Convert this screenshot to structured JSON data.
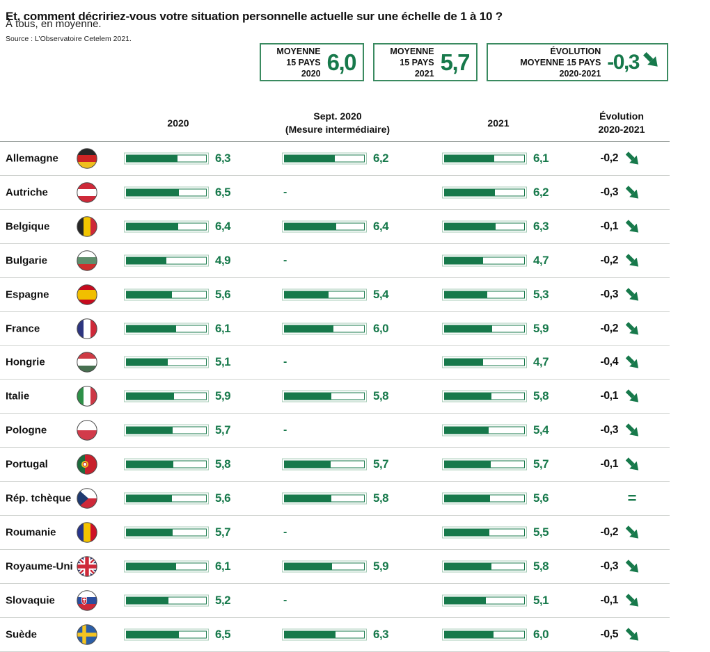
{
  "page": {
    "title": "Et, comment décririez-vous votre situation personnelle actuelle sur une échelle de 1 à 10 ?",
    "subtitle": "À tous, en moyenne.",
    "source": "Source : L’Observatoire Cetelem 2021."
  },
  "colors": {
    "brand_green": "#17794B",
    "bar_light_border": "#A9CDB9",
    "box_border": "#3A8A60",
    "separator": "#cfd2cf"
  },
  "summary_boxes": [
    {
      "label_lines": [
        "MOYENNE",
        "15 PAYS",
        "2020"
      ],
      "value": "6,0"
    },
    {
      "label_lines": [
        "MOYENNE",
        "15 PAYS",
        "2021"
      ],
      "value": "5,7"
    },
    {
      "label_lines": [
        "ÉVOLUTION",
        "MOYENNE 15 PAYS",
        "2020-2021"
      ],
      "value": "-0,3",
      "trend": "down"
    }
  ],
  "columns": {
    "c2020": "2020",
    "csept_line1": "Sept. 2020",
    "csept_line2": "(Mesure intermédiaire)",
    "c2021": "2021",
    "cevo_line1": "Évolution",
    "cevo_line2": "2020-2021"
  },
  "rows": [
    {
      "country": "Allemagne",
      "flag": "germany",
      "v2020": "6,3",
      "sept": "6,2",
      "v2021": "6,1",
      "evolution": "-0,2",
      "trend": "down"
    },
    {
      "country": "Autriche",
      "flag": "austria",
      "v2020": "6,5",
      "sept": "-",
      "v2021": "6,2",
      "evolution": "-0,3",
      "trend": "down"
    },
    {
      "country": "Belgique",
      "flag": "belgium",
      "v2020": "6,4",
      "sept": "6,4",
      "v2021": "6,3",
      "evolution": "-0,1",
      "trend": "down"
    },
    {
      "country": "Bulgarie",
      "flag": "bulgaria",
      "v2020": "4,9",
      "sept": "-",
      "v2021": "4,7",
      "evolution": "-0,2",
      "trend": "down"
    },
    {
      "country": "Espagne",
      "flag": "spain",
      "v2020": "5,6",
      "sept": "5,4",
      "v2021": "5,3",
      "evolution": "-0,3",
      "trend": "down"
    },
    {
      "country": "France",
      "flag": "france",
      "v2020": "6,1",
      "sept": "6,0",
      "v2021": "5,9",
      "evolution": "-0,2",
      "trend": "down"
    },
    {
      "country": "Hongrie",
      "flag": "hungary",
      "v2020": "5,1",
      "sept": "-",
      "v2021": "4,7",
      "evolution": "-0,4",
      "trend": "down"
    },
    {
      "country": "Italie",
      "flag": "italy",
      "v2020": "5,9",
      "sept": "5,8",
      "v2021": "5,8",
      "evolution": "-0,1",
      "trend": "down"
    },
    {
      "country": "Pologne",
      "flag": "poland",
      "v2020": "5,7",
      "sept": "-",
      "v2021": "5,4",
      "evolution": "-0,3",
      "trend": "down"
    },
    {
      "country": "Portugal",
      "flag": "portugal",
      "v2020": "5,8",
      "sept": "5,7",
      "v2021": "5,7",
      "evolution": "-0,1",
      "trend": "down"
    },
    {
      "country": "Rép. tchèque",
      "flag": "czech-republic",
      "v2020": "5,6",
      "sept": "5,8",
      "v2021": "5,6",
      "evolution": "=",
      "trend": "equal"
    },
    {
      "country": "Roumanie",
      "flag": "romania",
      "v2020": "5,7",
      "sept": "-",
      "v2021": "5,5",
      "evolution": "-0,2",
      "trend": "down"
    },
    {
      "country": "Royaume-Uni",
      "flag": "united-kingdom",
      "v2020": "6,1",
      "sept": "5,9",
      "v2021": "5,8",
      "evolution": "-0,3",
      "trend": "down"
    },
    {
      "country": "Slovaquie",
      "flag": "slovakia",
      "v2020": "5,2",
      "sept": "-",
      "v2021": "5,1",
      "evolution": "-0,1",
      "trend": "down"
    },
    {
      "country": "Suède",
      "flag": "sweden",
      "v2020": "6,5",
      "sept": "6,3",
      "v2021": "6,0",
      "evolution": "-0,5",
      "trend": "down"
    }
  ],
  "chart_data": {
    "type": "bar",
    "title": "Et, comment décririez-vous votre situation personnelle actuelle sur une échelle de 1 à 10 ?",
    "subtitle": "À tous, en moyenne.",
    "source": "Source : L’Observatoire Cetelem 2021.",
    "scale_min": 0,
    "scale_max": 10,
    "orientation": "horizontal",
    "categories": [
      "Allemagne",
      "Autriche",
      "Belgique",
      "Bulgarie",
      "Espagne",
      "France",
      "Hongrie",
      "Italie",
      "Pologne",
      "Portugal",
      "Rép. tchèque",
      "Roumanie",
      "Royaume-Uni",
      "Slovaquie",
      "Suède"
    ],
    "series": [
      {
        "name": "2020",
        "values": [
          6.3,
          6.5,
          6.4,
          4.9,
          5.6,
          6.1,
          5.1,
          5.9,
          5.7,
          5.8,
          5.6,
          5.7,
          6.1,
          5.2,
          6.5
        ]
      },
      {
        "name": "Sept. 2020 (Mesure intermédiaire)",
        "values": [
          6.2,
          null,
          6.4,
          null,
          5.4,
          6.0,
          null,
          5.8,
          null,
          5.7,
          5.8,
          null,
          5.9,
          null,
          6.3
        ]
      },
      {
        "name": "2021",
        "values": [
          6.1,
          6.2,
          6.3,
          4.7,
          5.3,
          5.9,
          4.7,
          5.8,
          5.4,
          5.7,
          5.6,
          5.5,
          5.8,
          5.1,
          6.0
        ]
      },
      {
        "name": "Évolution 2020-2021",
        "values": [
          -0.2,
          -0.3,
          -0.1,
          -0.2,
          -0.3,
          -0.2,
          -0.4,
          -0.1,
          -0.3,
          -0.1,
          0.0,
          -0.2,
          -0.3,
          -0.1,
          -0.5
        ]
      }
    ],
    "summary": {
      "moyenne_15_pays_2020": 6.0,
      "moyenne_15_pays_2021": 5.7,
      "evolution_moyenne_15_pays_2020_2021": -0.3
    }
  }
}
